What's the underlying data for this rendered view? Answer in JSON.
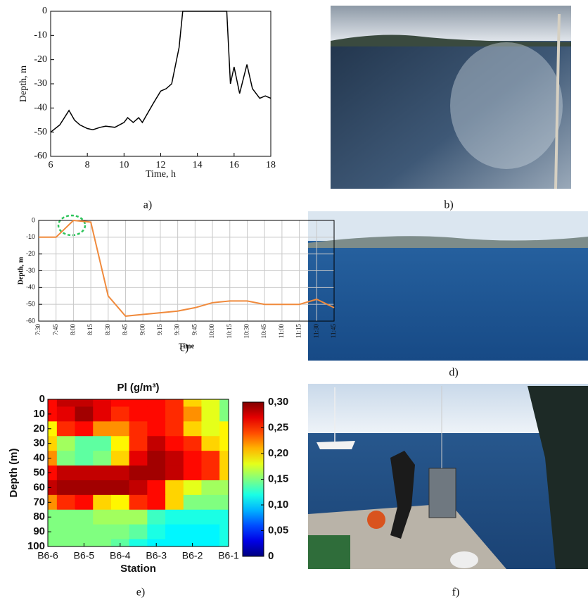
{
  "chart_data": [
    {
      "type": "line",
      "xlabel": "Time, h",
      "ylabel": "Depth, m",
      "color": "#000000",
      "x": [
        6,
        6.5,
        7,
        7.3,
        7.6,
        8,
        8.3,
        8.7,
        9,
        9.5,
        10,
        10.2,
        10.5,
        10.8,
        11,
        11.3,
        11.6,
        12,
        12.3,
        12.6,
        13,
        13.2,
        15.6,
        15.8,
        16,
        16.3,
        16.7,
        17,
        17.4,
        17.7,
        18
      ],
      "values": [
        -50,
        -47,
        -41,
        -45,
        -47,
        -48.5,
        -49,
        -48,
        -47.5,
        -48,
        -46,
        -44,
        -46,
        -44,
        -46,
        -42,
        -38,
        -33,
        -32,
        -30,
        -15,
        0,
        0,
        -30,
        -23,
        -34,
        -22,
        -32,
        -36,
        -35,
        -36
      ],
      "xlim": [
        6,
        18
      ],
      "ylim": [
        -60,
        0
      ],
      "xticks": [
        6,
        8,
        10,
        12,
        14,
        16,
        18
      ],
      "yticks": [
        0,
        -10,
        -20,
        -30,
        -40,
        -50,
        -60
      ]
    },
    {
      "type": "line",
      "xlabel": "Time",
      "ylabel": "Depth, m",
      "color": "#f08a3c",
      "grid": true,
      "categories": [
        "7:30",
        "7:45",
        "8:00",
        "8:15",
        "8:30",
        "8:45",
        "9:00",
        "9:15",
        "9:30",
        "9:45",
        "10:00",
        "10:15",
        "10:30",
        "10:45",
        "11:00",
        "11:15",
        "11:30",
        "11:45"
      ],
      "values": [
        -10,
        -10,
        0,
        -1,
        -45,
        -57,
        -56,
        -55,
        -54,
        -52,
        -49,
        -48,
        -48,
        -50,
        -50,
        -50,
        -47,
        -52
      ],
      "ylim": [
        -60,
        0
      ],
      "yticks": [
        0,
        -10,
        -20,
        -30,
        -40,
        -50,
        -60
      ]
    },
    {
      "type": "heatmap",
      "title": "Pl (g/m³)",
      "xlabel": "Station",
      "ylabel": "Depth (m)",
      "colormap": "jet",
      "y_inverted": true,
      "categories": [
        "B6-6",
        null,
        "B6-5",
        null,
        "B6-4",
        null,
        "B6-3",
        null,
        "B6-2",
        null,
        "B6-1"
      ],
      "y": [
        0,
        10,
        20,
        30,
        40,
        50,
        60,
        70,
        80,
        90,
        100
      ],
      "ylim": [
        0,
        100
      ],
      "yticks": [
        0,
        10,
        20,
        30,
        40,
        50,
        60,
        70,
        80,
        90,
        100
      ],
      "z": [
        [
          0.26,
          0.28,
          0.28,
          0.27,
          0.26,
          0.26,
          0.26,
          0.25,
          0.2,
          0.18,
          0.15
        ],
        [
          0.26,
          0.27,
          0.29,
          0.27,
          0.25,
          0.26,
          0.26,
          0.25,
          0.22,
          0.18,
          0.15
        ],
        [
          0.19,
          0.25,
          0.26,
          0.22,
          0.22,
          0.25,
          0.26,
          0.25,
          0.2,
          0.18,
          0.19
        ],
        [
          0.2,
          0.16,
          0.14,
          0.14,
          0.19,
          0.25,
          0.28,
          0.26,
          0.25,
          0.2,
          0.19
        ],
        [
          0.22,
          0.15,
          0.14,
          0.15,
          0.2,
          0.27,
          0.29,
          0.28,
          0.26,
          0.25,
          0.2
        ],
        [
          0.26,
          0.28,
          0.28,
          0.28,
          0.28,
          0.29,
          0.29,
          0.28,
          0.26,
          0.25,
          0.2
        ],
        [
          0.28,
          0.29,
          0.29,
          0.29,
          0.29,
          0.28,
          0.26,
          0.2,
          0.18,
          0.16,
          0.16
        ],
        [
          0.22,
          0.25,
          0.26,
          0.2,
          0.19,
          0.25,
          0.26,
          0.2,
          0.15,
          0.15,
          0.15
        ],
        [
          0.15,
          0.15,
          0.15,
          0.16,
          0.16,
          0.16,
          0.13,
          0.12,
          0.12,
          0.12,
          0.12
        ],
        [
          0.15,
          0.15,
          0.15,
          0.15,
          0.15,
          0.14,
          0.12,
          0.11,
          0.11,
          0.11,
          0.12
        ],
        [
          0.15,
          0.15,
          0.15,
          0.15,
          0.14,
          0.12,
          0.11,
          0.11,
          0.11,
          0.11,
          0.12
        ]
      ],
      "clim": [
        0,
        0.3
      ],
      "cticks": [
        {
          "value": 0,
          "label": "0"
        },
        {
          "value": 0.05,
          "label": "0,05"
        },
        {
          "value": 0.1,
          "label": "0,10"
        },
        {
          "value": 0.15,
          "label": "0,15"
        },
        {
          "value": 0.2,
          "label": "0,20"
        },
        {
          "value": 0.25,
          "label": "0,25"
        },
        {
          "value": 0.3,
          "label": "0,30"
        }
      ]
    }
  ],
  "panel_labels": [
    "a)",
    "b)",
    "c)",
    "d)",
    "e)",
    "f)"
  ]
}
